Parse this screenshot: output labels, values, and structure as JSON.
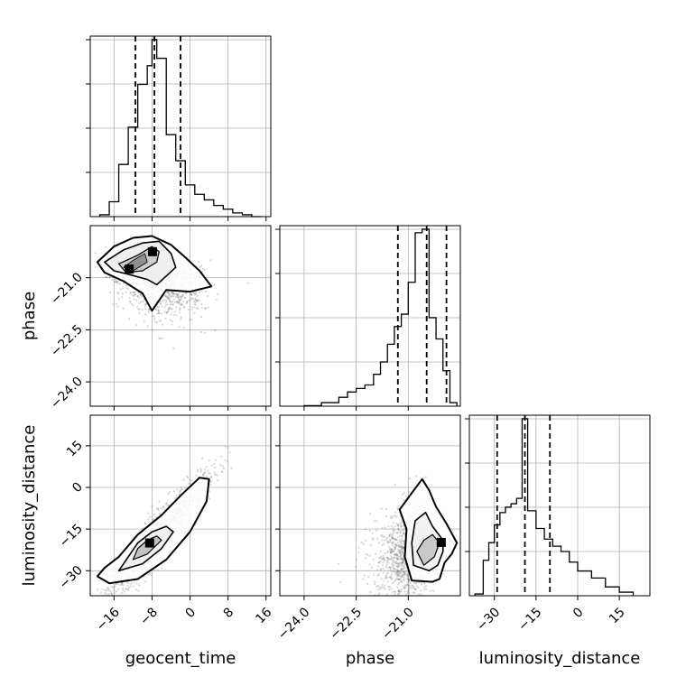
{
  "chart_data": {
    "type": "corner",
    "params": [
      "geocent_time",
      "phase",
      "luminosity_distance"
    ],
    "axis_labels": {
      "geocent_time": "geocent_time",
      "phase": "phase",
      "luminosity_distance": "luminosity_distance"
    },
    "ranges": {
      "geocent_time": [
        -21,
        17
      ],
      "phase": [
        -24.7,
        -19.5
      ],
      "luminosity_distance": [
        -39,
        26
      ]
    },
    "ticks": {
      "geocent_time": [
        -16,
        -8,
        0,
        8,
        16
      ],
      "phase": [
        -24.0,
        -22.5,
        -21.0
      ],
      "luminosity_distance": [
        -30,
        -15,
        0,
        15
      ]
    },
    "tick_labels": {
      "geocent_time": [
        "−16",
        "−8",
        "0",
        "8",
        "16"
      ],
      "phase": [
        "−24.0",
        "−22.5",
        "−21.0"
      ],
      "luminosity_distance": [
        "−30",
        "−15",
        "0",
        "15"
      ]
    },
    "grid": true,
    "histograms": {
      "geocent_time": {
        "bin_edges": [
          -19,
          -17,
          -15,
          -13,
          -11,
          -9,
          -8,
          -7,
          -5,
          -3,
          -1,
          1,
          3,
          5,
          7,
          9,
          11,
          13,
          15
        ],
        "counts": [
          1,
          8,
          28,
          48,
          71,
          81,
          95,
          85,
          44,
          30,
          17,
          12,
          9,
          6,
          4,
          2,
          1,
          0
        ]
      },
      "phase": {
        "bin_edges": [
          -24.0,
          -23.5,
          -23.0,
          -22.75,
          -22.5,
          -22.25,
          -22.0,
          -21.8,
          -21.6,
          -21.4,
          -21.2,
          -21.0,
          -20.8,
          -20.6,
          -20.4,
          -20.2,
          -20.0,
          -19.8,
          -19.6
        ],
        "counts": [
          0.3,
          2,
          5,
          8,
          10,
          12,
          18,
          25,
          35,
          45,
          52,
          70,
          98,
          100,
          50,
          38,
          20,
          2
        ]
      },
      "luminosity_distance": {
        "bin_edges": [
          -37,
          -34,
          -32,
          -30,
          -28,
          -26,
          -24,
          -22,
          -20,
          -18,
          -15,
          -12,
          -9,
          -6,
          -3,
          0,
          5,
          10,
          15,
          20
        ],
        "counts": [
          1,
          20,
          30,
          40,
          47,
          50,
          52,
          55,
          100,
          48,
          38,
          32,
          28,
          25,
          19,
          14,
          10,
          5,
          2
        ]
      }
    },
    "quantiles": {
      "geocent_time": [
        -11.5,
        -7.5,
        -2.0
      ],
      "phase": [
        -21.3,
        -20.47,
        -19.9
      ],
      "luminosity_distance": [
        -29,
        -19,
        -10
      ]
    },
    "contour_levels": [
      0.39,
      0.86,
      0.99
    ]
  }
}
